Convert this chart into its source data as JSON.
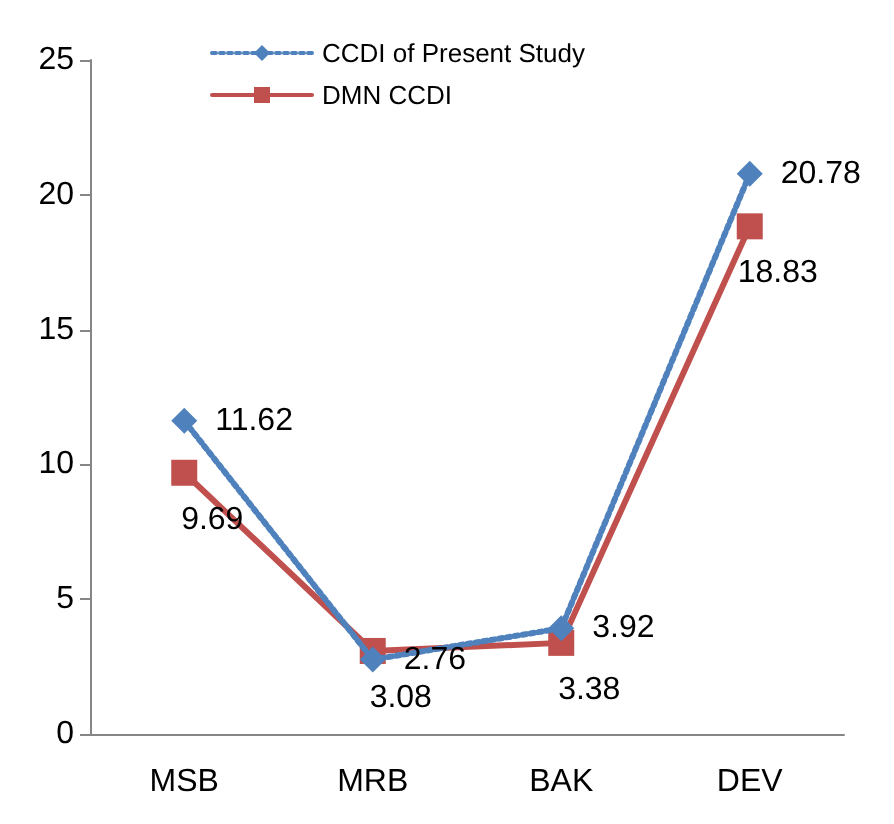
{
  "chart_data": {
    "type": "line",
    "categories": [
      "MSB",
      "MRB",
      "BAK",
      "DEV"
    ],
    "series": [
      {
        "name": "CCDI of Present Study",
        "color": "#4f81bd",
        "values": [
          11.62,
          2.76,
          3.92,
          20.78
        ],
        "marker": "diamond",
        "line_style": "dotted"
      },
      {
        "name": "DMN CCDI",
        "color": "#c0504d",
        "values": [
          9.69,
          3.08,
          3.38,
          18.83
        ],
        "marker": "square",
        "line_style": "solid"
      }
    ],
    "ylim": [
      0,
      25
    ],
    "yticks": [
      0,
      5,
      10,
      15,
      20,
      25
    ],
    "grid": false,
    "legend": "top",
    "data_labels": true
  }
}
